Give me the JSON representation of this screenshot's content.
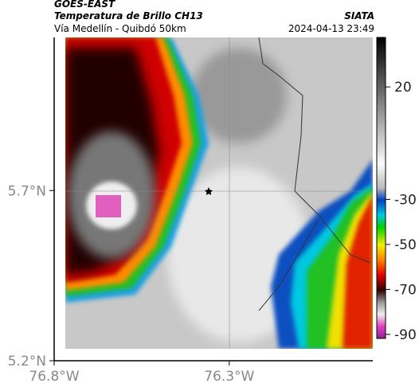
{
  "header": {
    "satellite": "GOES-EAST",
    "title": "Temperatura de Brillo CH13",
    "subtitle": "Vía Medellín - Quibdó 50km",
    "source": "SIATA",
    "timestamp": "2024-04-13 23:49"
  },
  "map": {
    "xlim": [
      -76.8,
      -75.89
    ],
    "ylim": [
      5.2,
      6.15
    ],
    "xticks": [
      {
        "value": -76.8,
        "label": "76.8°W"
      },
      {
        "value": -76.3,
        "label": "76.3°W"
      }
    ],
    "yticks": [
      {
        "value": 5.7,
        "label": "5.7°N"
      },
      {
        "value": 5.2,
        "label": "5.2°N"
      }
    ]
  },
  "colorbar": {
    "lim": [
      -91.8,
      42
    ],
    "ticks": [
      20,
      -30,
      -50,
      -70,
      -90
    ]
  }
}
